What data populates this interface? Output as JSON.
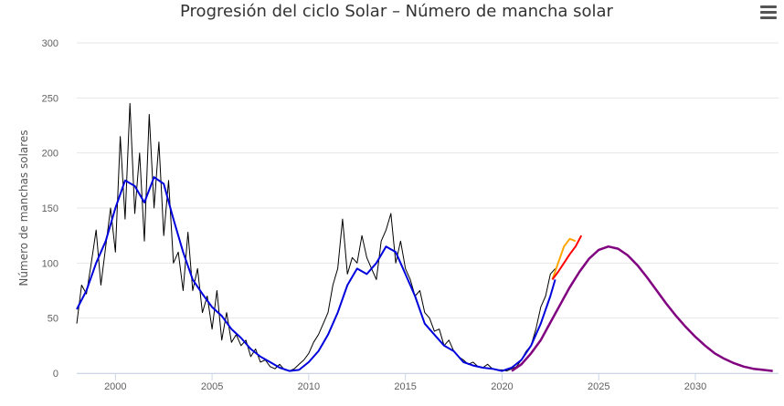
{
  "chart_data": {
    "type": "line",
    "title": "Progresión del ciclo Solar – Número de mancha solar",
    "ylabel": "Número de manchas solares",
    "xlabel": "",
    "xlim": [
      1998,
      2034.3
    ],
    "ylim": [
      0,
      300
    ],
    "x_ticks": [
      2000,
      2005,
      2010,
      2015,
      2020,
      2025,
      2030
    ],
    "y_ticks": [
      0,
      50,
      100,
      150,
      200,
      250,
      300
    ],
    "grid": "horizontal",
    "legend": "none",
    "colors": {
      "monthly": "#000000",
      "smoothed": "#0000dd",
      "prediction": "#800080",
      "recent_orange": "#ffa500",
      "recent_red": "#ff0000"
    },
    "series": [
      {
        "id": "monthly",
        "x": [
          1998.0,
          1998.25,
          1998.5,
          1998.75,
          1999.0,
          1999.25,
          1999.5,
          1999.75,
          2000.0,
          2000.25,
          2000.5,
          2000.75,
          2001.0,
          2001.25,
          2001.5,
          2001.75,
          2002.0,
          2002.25,
          2002.5,
          2002.75,
          2003.0,
          2003.25,
          2003.5,
          2003.75,
          2004.0,
          2004.25,
          2004.5,
          2004.75,
          2005.0,
          2005.25,
          2005.5,
          2005.75,
          2006.0,
          2006.25,
          2006.5,
          2006.75,
          2007.0,
          2007.25,
          2007.5,
          2007.75,
          2008.0,
          2008.25,
          2008.5,
          2008.75,
          2009.0,
          2009.25,
          2009.5,
          2009.75,
          2010.0,
          2010.25,
          2010.5,
          2010.75,
          2011.0,
          2011.25,
          2011.5,
          2011.75,
          2012.0,
          2012.25,
          2012.5,
          2012.75,
          2013.0,
          2013.25,
          2013.5,
          2013.75,
          2014.0,
          2014.25,
          2014.5,
          2014.75,
          2015.0,
          2015.25,
          2015.5,
          2015.75,
          2016.0,
          2016.25,
          2016.5,
          2016.75,
          2017.0,
          2017.25,
          2017.5,
          2017.75,
          2018.0,
          2018.25,
          2018.5,
          2018.75,
          2019.0,
          2019.25,
          2019.5,
          2019.75,
          2020.0,
          2020.25,
          2020.5,
          2020.75,
          2021.0,
          2021.25,
          2021.5,
          2021.75,
          2022.0,
          2022.25,
          2022.5,
          2022.75
        ],
        "values": [
          45,
          80,
          72,
          100,
          130,
          80,
          115,
          150,
          110,
          215,
          140,
          245,
          145,
          200,
          120,
          235,
          150,
          210,
          125,
          175,
          100,
          110,
          75,
          128,
          75,
          95,
          55,
          70,
          40,
          75,
          30,
          55,
          28,
          35,
          25,
          30,
          15,
          22,
          10,
          12,
          6,
          4,
          8,
          3,
          2,
          4,
          8,
          12,
          18,
          28,
          35,
          45,
          55,
          80,
          95,
          140,
          90,
          105,
          100,
          125,
          105,
          95,
          85,
          120,
          130,
          145,
          100,
          120,
          95,
          85,
          70,
          75,
          55,
          50,
          38,
          40,
          25,
          30,
          20,
          15,
          12,
          8,
          10,
          6,
          5,
          8,
          4,
          3,
          3,
          2,
          4,
          6,
          12,
          20,
          25,
          40,
          60,
          70,
          90,
          95
        ]
      },
      {
        "id": "smoothed",
        "x": [
          1998.0,
          1998.5,
          1999.0,
          1999.5,
          2000.0,
          2000.5,
          2001.0,
          2001.5,
          2002.0,
          2002.5,
          2003.0,
          2003.5,
          2004.0,
          2004.5,
          2005.0,
          2005.5,
          2006.0,
          2006.5,
          2007.0,
          2007.5,
          2008.0,
          2008.5,
          2009.0,
          2009.5,
          2010.0,
          2010.5,
          2011.0,
          2011.5,
          2012.0,
          2012.5,
          2013.0,
          2013.5,
          2014.0,
          2014.5,
          2015.0,
          2015.5,
          2016.0,
          2016.5,
          2017.0,
          2017.5,
          2018.0,
          2018.5,
          2019.0,
          2019.5,
          2020.0,
          2020.5,
          2021.0,
          2021.5,
          2022.0,
          2022.5,
          2022.75
        ],
        "values": [
          58,
          75,
          100,
          120,
          150,
          175,
          170,
          155,
          178,
          172,
          140,
          110,
          85,
          72,
          60,
          52,
          40,
          32,
          22,
          15,
          10,
          5,
          2,
          3,
          10,
          20,
          35,
          55,
          80,
          95,
          90,
          100,
          115,
          110,
          90,
          70,
          45,
          35,
          25,
          20,
          10,
          7,
          5,
          4,
          2,
          5,
          12,
          25,
          45,
          70,
          85
        ]
      },
      {
        "id": "recent_orange",
        "x": [
          2022.6,
          2022.9,
          2023.2,
          2023.5,
          2023.8
        ],
        "values": [
          85,
          100,
          115,
          122,
          120
        ]
      },
      {
        "id": "recent_red",
        "x": [
          2022.6,
          2022.9,
          2023.2,
          2023.5,
          2023.8,
          2024.1
        ],
        "values": [
          85,
          92,
          100,
          108,
          115,
          125
        ]
      },
      {
        "id": "prediction",
        "x": [
          2020.5,
          2021.0,
          2021.5,
          2022.0,
          2022.5,
          2023.0,
          2023.5,
          2024.0,
          2024.5,
          2025.0,
          2025.5,
          2026.0,
          2026.5,
          2027.0,
          2027.5,
          2028.0,
          2028.5,
          2029.0,
          2029.5,
          2030.0,
          2030.5,
          2031.0,
          2031.5,
          2032.0,
          2032.5,
          2033.0,
          2033.5,
          2034.0
        ],
        "values": [
          2,
          8,
          18,
          30,
          46,
          62,
          78,
          92,
          104,
          112,
          115,
          113,
          107,
          98,
          87,
          75,
          63,
          52,
          42,
          33,
          25,
          18,
          13,
          9,
          6,
          4,
          3,
          2
        ]
      }
    ]
  }
}
